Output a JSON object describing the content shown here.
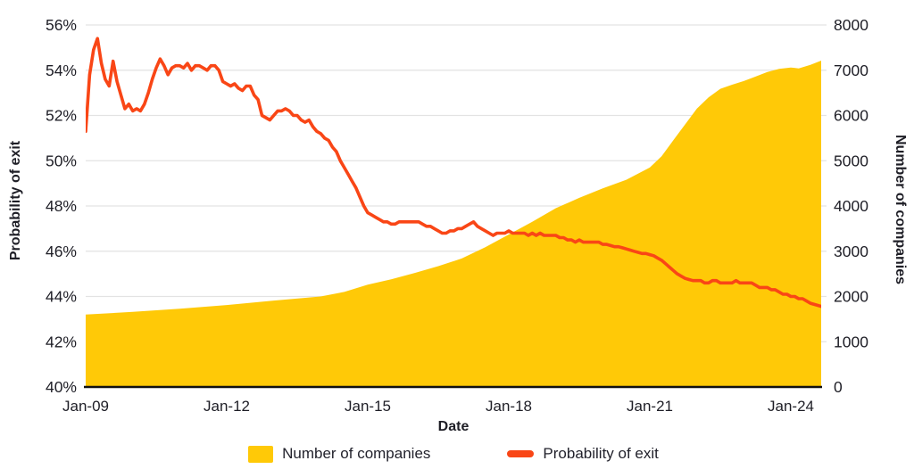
{
  "colors": {
    "background": "#ffffff",
    "area": "#FFC907",
    "line": "#F94616",
    "grid": "#e3e3e3",
    "axis_line": "#111111",
    "text": "#1e1e26"
  },
  "chart_data": {
    "type": "area+line combo, dual y-axis",
    "title": "",
    "x_axis": {
      "label": "Date",
      "start": "2009-01",
      "frequency": "monthly",
      "domain_months": [
        0,
        188
      ],
      "tick_labels": [
        "Jan-09",
        "Jan-12",
        "Jan-15",
        "Jan-18",
        "Jan-21",
        "Jan-24"
      ],
      "tick_month_index": [
        0,
        36,
        72,
        108,
        144,
        180
      ]
    },
    "y_left": {
      "label": "Probability of exit",
      "unit": "%",
      "min": 40,
      "max": 56,
      "tick_step": 2,
      "tick_labels": [
        "40%",
        "42%",
        "44%",
        "46%",
        "48%",
        "50%",
        "52%",
        "54%",
        "56%"
      ]
    },
    "y_right": {
      "label": "Number of companies",
      "min": 0,
      "max": 8000,
      "tick_step": 1000,
      "tick_labels": [
        "0",
        "1000",
        "2000",
        "3000",
        "4000",
        "5000",
        "6000",
        "7000",
        "8000"
      ]
    },
    "grid": {
      "show": true,
      "color": "#e3e3e3"
    },
    "series": [
      {
        "name": "Number of companies",
        "type": "area",
        "axis": "right",
        "color": "#FFC907",
        "points_month_value": [
          [
            0,
            1600
          ],
          [
            12,
            1660
          ],
          [
            24,
            1730
          ],
          [
            36,
            1810
          ],
          [
            48,
            1910
          ],
          [
            60,
            2000
          ],
          [
            66,
            2100
          ],
          [
            72,
            2260
          ],
          [
            78,
            2380
          ],
          [
            84,
            2520
          ],
          [
            90,
            2670
          ],
          [
            96,
            2840
          ],
          [
            102,
            3090
          ],
          [
            108,
            3370
          ],
          [
            114,
            3650
          ],
          [
            120,
            3950
          ],
          [
            126,
            4180
          ],
          [
            132,
            4390
          ],
          [
            138,
            4580
          ],
          [
            144,
            4850
          ],
          [
            147,
            5100
          ],
          [
            150,
            5450
          ],
          [
            153,
            5800
          ],
          [
            156,
            6150
          ],
          [
            159,
            6400
          ],
          [
            162,
            6590
          ],
          [
            165,
            6680
          ],
          [
            168,
            6760
          ],
          [
            171,
            6860
          ],
          [
            174,
            6960
          ],
          [
            177,
            7030
          ],
          [
            180,
            7060
          ],
          [
            182,
            7040
          ],
          [
            185,
            7120
          ],
          [
            188,
            7220
          ]
        ]
      },
      {
        "name": "Probability of exit",
        "type": "line",
        "axis": "left",
        "color": "#F94616",
        "start_month": 0,
        "values_monthly_percent": [
          51.3,
          53.8,
          54.9,
          55.4,
          54.3,
          53.6,
          53.3,
          54.4,
          53.5,
          52.9,
          52.3,
          52.5,
          52.2,
          52.3,
          52.2,
          52.5,
          53.0,
          53.6,
          54.1,
          54.5,
          54.2,
          53.8,
          54.1,
          54.2,
          54.2,
          54.1,
          54.3,
          54.0,
          54.2,
          54.2,
          54.1,
          54.0,
          54.2,
          54.2,
          54.0,
          53.5,
          53.4,
          53.3,
          53.4,
          53.2,
          53.1,
          53.3,
          53.3,
          52.9,
          52.7,
          52.0,
          51.9,
          51.8,
          52.0,
          52.2,
          52.2,
          52.3,
          52.2,
          52.0,
          52.0,
          51.8,
          51.7,
          51.8,
          51.5,
          51.3,
          51.2,
          51.0,
          50.9,
          50.6,
          50.4,
          50.0,
          49.7,
          49.4,
          49.1,
          48.8,
          48.4,
          48.0,
          47.7,
          47.6,
          47.5,
          47.4,
          47.3,
          47.3,
          47.2,
          47.2,
          47.3,
          47.3,
          47.3,
          47.3,
          47.3,
          47.3,
          47.2,
          47.1,
          47.1,
          47.0,
          46.9,
          46.8,
          46.8,
          46.9,
          46.9,
          47.0,
          47.0,
          47.1,
          47.2,
          47.3,
          47.1,
          47.0,
          46.9,
          46.8,
          46.7,
          46.8,
          46.8,
          46.8,
          46.9,
          46.8,
          46.8,
          46.8,
          46.8,
          46.7,
          46.8,
          46.7,
          46.8,
          46.7,
          46.7,
          46.7,
          46.7,
          46.6,
          46.6,
          46.5,
          46.5,
          46.4,
          46.5,
          46.4,
          46.4,
          46.4,
          46.4,
          46.4,
          46.3,
          46.3,
          46.25,
          46.2,
          46.2,
          46.15,
          46.1,
          46.05,
          46.0,
          45.95,
          45.9,
          45.9,
          45.85,
          45.8,
          45.7,
          45.6,
          45.45,
          45.3,
          45.15,
          45.0,
          44.9,
          44.8,
          44.75,
          44.7,
          44.7,
          44.7,
          44.6,
          44.6,
          44.7,
          44.7,
          44.6,
          44.6,
          44.6,
          44.6,
          44.7,
          44.6,
          44.6,
          44.6,
          44.6,
          44.5,
          44.4,
          44.4,
          44.4,
          44.3,
          44.3,
          44.2,
          44.1,
          44.1,
          44.0,
          44.0,
          43.9,
          43.9,
          43.8,
          43.7,
          43.65,
          43.6,
          43.55
        ]
      }
    ],
    "legend": {
      "position": "bottom",
      "items": [
        {
          "label": "Number of companies",
          "swatch": "square",
          "color": "#FFC907"
        },
        {
          "label": "Probability of exit",
          "swatch": "line",
          "color": "#F94616"
        }
      ]
    }
  }
}
